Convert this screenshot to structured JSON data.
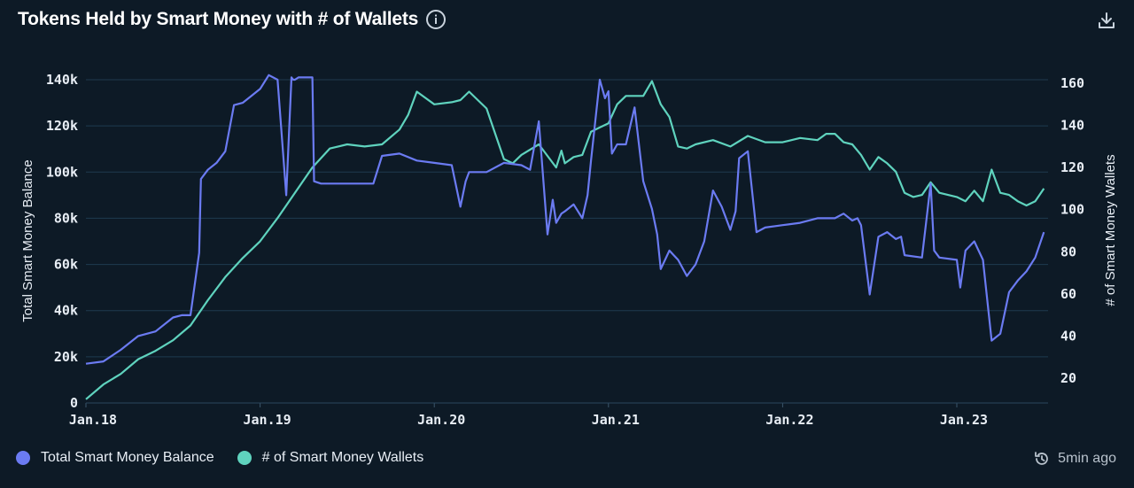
{
  "header": {
    "title": "Tokens Held by Smart Money with # of Wallets"
  },
  "footer": {
    "updated": "5min ago"
  },
  "colors": {
    "balance": "#6b7bf2",
    "wallets": "#5fd3be",
    "grid": "#1e3a4f",
    "background": "#0d1a26"
  },
  "chart_data": {
    "type": "line",
    "title": "Tokens Held by Smart Money with # of Wallets",
    "x_ticks": [
      "Jan.18",
      "Jan.19",
      "Jan.20",
      "Jan.21",
      "Jan.22",
      "Jan.23"
    ],
    "y_left": {
      "label": "Total Smart Money Balance",
      "ticks": [
        "0",
        "20k",
        "40k",
        "60k",
        "80k",
        "100k",
        "120k",
        "140k"
      ],
      "range": [
        0,
        140000
      ]
    },
    "y_right": {
      "label": "# of Smart Money Wallets",
      "ticks": [
        "20",
        "40",
        "60",
        "80",
        "100",
        "120",
        "140",
        "160"
      ],
      "range": [
        20,
        160
      ]
    },
    "grid": true,
    "legend_position": "bottom-left",
    "series": [
      {
        "name": "Total Smart Money Balance",
        "axis": "left",
        "x": [
          2018.0,
          2018.1,
          2018.2,
          2018.3,
          2018.4,
          2018.5,
          2018.55,
          2018.6,
          2018.65,
          2018.66,
          2018.7,
          2018.75,
          2018.8,
          2018.85,
          2018.9,
          2018.95,
          2019.0,
          2019.05,
          2019.1,
          2019.15,
          2019.18,
          2019.19,
          2019.2,
          2019.22,
          2019.3,
          2019.31,
          2019.35,
          2019.5,
          2019.65,
          2019.7,
          2019.8,
          2019.9,
          2020.0,
          2020.1,
          2020.15,
          2020.18,
          2020.2,
          2020.3,
          2020.4,
          2020.5,
          2020.55,
          2020.6,
          2020.65,
          2020.68,
          2020.7,
          2020.73,
          2020.75,
          2020.8,
          2020.85,
          2020.88,
          2020.9,
          2020.95,
          2020.98,
          2021.0,
          2021.02,
          2021.05,
          2021.1,
          2021.15,
          2021.2,
          2021.25,
          2021.28,
          2021.3,
          2021.35,
          2021.4,
          2021.45,
          2021.5,
          2021.55,
          2021.6,
          2021.65,
          2021.7,
          2021.73,
          2021.75,
          2021.8,
          2021.85,
          2021.9,
          2022.0,
          2022.1,
          2022.2,
          2022.3,
          2022.35,
          2022.4,
          2022.43,
          2022.45,
          2022.5,
          2022.55,
          2022.6,
          2022.65,
          2022.68,
          2022.7,
          2022.8,
          2022.85,
          2022.87,
          2022.9,
          2023.0,
          2023.02,
          2023.05,
          2023.1,
          2023.15,
          2023.2,
          2023.25,
          2023.3,
          2023.35,
          2023.4,
          2023.45,
          2023.5
        ],
        "values": [
          17000,
          18000,
          23000,
          29000,
          31000,
          37000,
          38000,
          38000,
          65000,
          97000,
          101000,
          104000,
          109000,
          129000,
          130000,
          133000,
          136000,
          142000,
          140000,
          90000,
          141000,
          140000,
          140000,
          141000,
          141000,
          96000,
          95000,
          95000,
          95000,
          107000,
          108000,
          105000,
          104000,
          103000,
          85000,
          96000,
          100000,
          100000,
          104000,
          103000,
          101000,
          122000,
          73000,
          88000,
          78000,
          82000,
          83000,
          86000,
          80000,
          90000,
          105000,
          140000,
          132000,
          135000,
          108000,
          112000,
          112000,
          128000,
          96000,
          84000,
          73000,
          58000,
          66000,
          62000,
          55000,
          60000,
          70000,
          92000,
          85000,
          75000,
          83000,
          106000,
          109000,
          74000,
          76000,
          77000,
          78000,
          80000,
          80000,
          82000,
          79000,
          80000,
          77000,
          47000,
          72000,
          74000,
          71000,
          72000,
          64000,
          63000,
          95000,
          66000,
          63000,
          62000,
          50000,
          66000,
          70000,
          62000,
          27000,
          30000,
          48000,
          53000,
          57000,
          63000,
          74000
        ]
      },
      {
        "name": "# of Smart Money Wallets",
        "axis": "right",
        "x": [
          2018.0,
          2018.1,
          2018.2,
          2018.3,
          2018.4,
          2018.5,
          2018.6,
          2018.7,
          2018.8,
          2018.9,
          2019.0,
          2019.1,
          2019.2,
          2019.3,
          2019.4,
          2019.5,
          2019.6,
          2019.7,
          2019.8,
          2019.85,
          2019.9,
          2020.0,
          2020.1,
          2020.15,
          2020.2,
          2020.3,
          2020.4,
          2020.45,
          2020.5,
          2020.6,
          2020.7,
          2020.73,
          2020.75,
          2020.8,
          2020.85,
          2020.9,
          2020.95,
          2021.0,
          2021.05,
          2021.1,
          2021.15,
          2021.2,
          2021.25,
          2021.3,
          2021.35,
          2021.4,
          2021.45,
          2021.5,
          2021.6,
          2021.7,
          2021.8,
          2021.9,
          2022.0,
          2022.1,
          2022.2,
          2022.25,
          2022.3,
          2022.35,
          2022.4,
          2022.45,
          2022.5,
          2022.55,
          2022.6,
          2022.65,
          2022.7,
          2022.75,
          2022.8,
          2022.85,
          2022.9,
          2023.0,
          2023.05,
          2023.1,
          2023.15,
          2023.2,
          2023.25,
          2023.3,
          2023.35,
          2023.4,
          2023.45,
          2023.5
        ],
        "values": [
          10,
          17,
          22,
          29,
          33,
          38,
          45,
          57,
          68,
          77,
          85,
          96,
          108,
          120,
          129,
          131,
          130,
          131,
          138,
          145,
          156,
          150,
          151,
          152,
          156,
          148,
          124,
          122,
          126,
          131,
          120,
          128,
          122,
          125,
          126,
          137,
          139,
          141,
          150,
          154,
          154,
          154,
          161,
          150,
          144,
          130,
          129,
          131,
          133,
          130,
          135,
          132,
          132,
          134,
          133,
          136,
          136,
          132,
          131,
          126,
          119,
          125,
          122,
          118,
          108,
          106,
          107,
          113,
          108,
          106,
          104,
          109,
          104,
          119,
          108,
          107,
          104,
          102,
          104,
          110
        ]
      }
    ]
  }
}
